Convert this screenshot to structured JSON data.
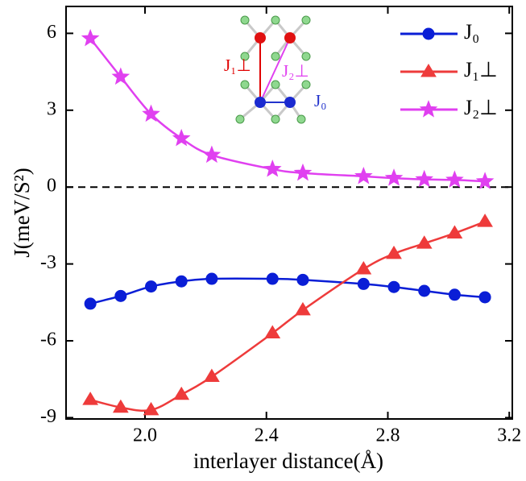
{
  "chart_data": {
    "type": "line",
    "xlabel": "interlayer distance(Å)",
    "ylabel": "J(meV/S²)",
    "x": [
      1.82,
      1.92,
      2.02,
      2.12,
      2.22,
      2.42,
      2.52,
      2.72,
      2.82,
      2.92,
      3.02,
      3.12
    ],
    "series": [
      {
        "name": "J₀",
        "color": "#0a1ed6",
        "marker": "circle",
        "values": [
          -4.55,
          -4.25,
          -3.88,
          -3.68,
          -3.58,
          -3.58,
          -3.62,
          -3.78,
          -3.9,
          -4.05,
          -4.2,
          -4.3
        ]
      },
      {
        "name": "J₁⊥",
        "color": "#ee3b3b",
        "marker": "triangle",
        "values": [
          -8.3,
          -8.6,
          -8.7,
          -8.1,
          -7.4,
          -5.7,
          -4.8,
          -3.2,
          -2.6,
          -2.2,
          -1.8,
          -1.35
        ]
      },
      {
        "name": "J₂⊥",
        "color": "#e040f0",
        "marker": "star",
        "values": [
          5.8,
          4.3,
          2.85,
          1.9,
          1.25,
          0.7,
          0.55,
          0.42,
          0.35,
          0.3,
          0.28,
          0.22
        ]
      }
    ],
    "xlim": [
      1.74,
      3.21
    ],
    "xticks": [
      2.0,
      2.4,
      2.8,
      3.2
    ],
    "ylim": [
      -9.05,
      7.05
    ],
    "yticks": [
      -9,
      -6,
      -3,
      0,
      3,
      6
    ],
    "reference_line": 0,
    "legend": "upper right",
    "annotations": [
      "J₁⊥",
      "J₂⊥",
      "J₀"
    ]
  }
}
